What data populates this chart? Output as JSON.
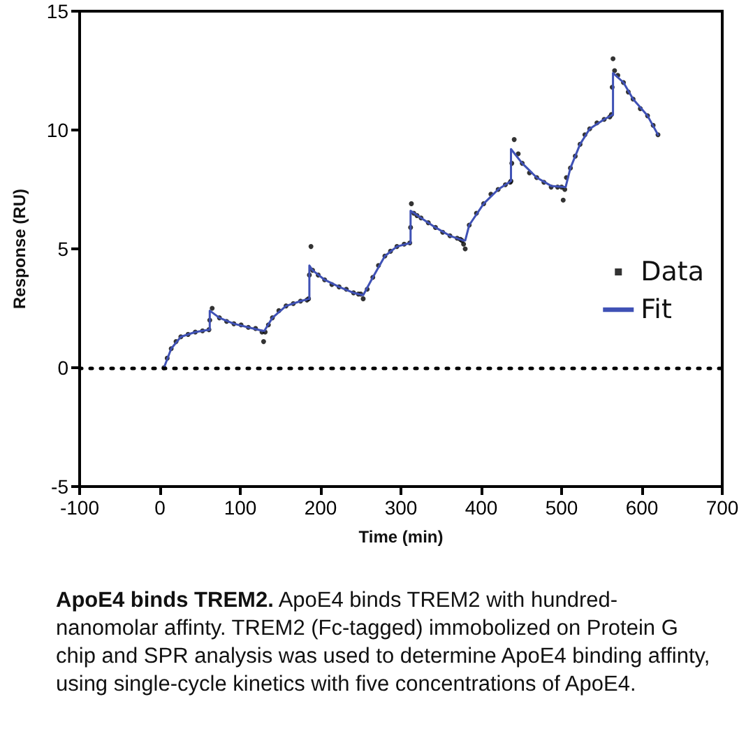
{
  "chart_data": {
    "type": "scatter",
    "title": "ApoE4 binds TREM2.",
    "annotations": [
      "ApoE4 binds TREM2 with hundred-nanomolar affinty. TREM2 (Fc-tagged) immobolized on Protein G chip and SPR analysis was used to determine ApoE4 binding affinty, using single-cycle kinetics with five concentrations of ApoE4."
    ],
    "xlabel": "Time (min)",
    "ylabel": "Response (RU)",
    "xlim": [
      -100,
      700
    ],
    "xticks": [
      -100,
      0,
      100,
      200,
      300,
      400,
      500,
      600,
      700
    ],
    "ylim": [
      -5,
      15
    ],
    "yticks": [
      -5,
      0,
      5,
      10,
      15
    ],
    "grid": false,
    "legend": "right",
    "marker": "circle",
    "ref_lines": [
      {
        "axis": "y",
        "value": 0,
        "color": "#000000",
        "line_style": "dotted"
      }
    ],
    "series": [
      {
        "name": "Data",
        "color": "#000000",
        "x": [
          5,
          9,
          14,
          20,
          26,
          35,
          44,
          53,
          61,
          62,
          65,
          74,
          83,
          92,
          101,
          110,
          119,
          127,
          129,
          131,
          135,
          140,
          148,
          157,
          166,
          175,
          183,
          185,
          186,
          188,
          190,
          197,
          205,
          214,
          223,
          232,
          241,
          247,
          250,
          253,
          258,
          265,
          272,
          280,
          287,
          295,
          304,
          311,
          312,
          313,
          316,
          320,
          325,
          334,
          343,
          352,
          361,
          370,
          374,
          376,
          378,
          380,
          385,
          394,
          403,
          412,
          421,
          430,
          436,
          437,
          438,
          441,
          446,
          451,
          460,
          469,
          478,
          487,
          495,
          500,
          502,
          504,
          506,
          511,
          517,
          523,
          529,
          535,
          544,
          553,
          560,
          562,
          563,
          564,
          566,
          570,
          577,
          583,
          589,
          598,
          607,
          614,
          620
        ],
        "values": [
          0,
          0.4,
          0.8,
          1.1,
          1.3,
          1.4,
          1.5,
          1.55,
          1.6,
          2.0,
          2.5,
          2.1,
          1.95,
          1.85,
          1.8,
          1.7,
          1.65,
          1.5,
          1.1,
          1.5,
          1.8,
          2.1,
          2.4,
          2.6,
          2.7,
          2.8,
          2.85,
          2.9,
          3.9,
          5.1,
          4.1,
          3.9,
          3.7,
          3.5,
          3.4,
          3.3,
          3.15,
          3.1,
          3.1,
          2.9,
          3.3,
          3.8,
          4.3,
          4.7,
          4.9,
          5.1,
          5.2,
          5.25,
          5.9,
          6.9,
          6.5,
          6.4,
          6.3,
          6.1,
          5.9,
          5.7,
          5.55,
          5.45,
          5.4,
          5.35,
          5.2,
          5.0,
          6.0,
          6.5,
          6.9,
          7.3,
          7.5,
          7.7,
          7.8,
          7.85,
          8.6,
          9.6,
          9.0,
          8.6,
          8.2,
          8.0,
          7.8,
          7.6,
          7.6,
          7.6,
          7.05,
          7.5,
          8.0,
          8.4,
          8.9,
          9.4,
          9.8,
          10.05,
          10.3,
          10.45,
          10.55,
          10.65,
          11.8,
          13.0,
          12.5,
          12.3,
          12.0,
          11.6,
          11.3,
          10.9,
          10.6,
          10.2,
          9.8
        ]
      },
      {
        "name": "Fit",
        "type": "line",
        "marker": "none",
        "color": "#3f51b5",
        "x": [
          5,
          14,
          26,
          44,
          62,
          62,
          74,
          92,
          110,
          128,
          130,
          140,
          157,
          175,
          186,
          186,
          190,
          205,
          223,
          241,
          253,
          265,
          280,
          295,
          312,
          312,
          325,
          343,
          361,
          378,
          380,
          385,
          403,
          421,
          437,
          437,
          451,
          469,
          487,
          503,
          505,
          511,
          523,
          535,
          553,
          564,
          564,
          577,
          589,
          607,
          620
        ],
        "values": [
          0,
          0.8,
          1.3,
          1.5,
          1.6,
          2.4,
          2.1,
          1.85,
          1.7,
          1.55,
          1.55,
          2.1,
          2.6,
          2.8,
          2.9,
          4.3,
          4.1,
          3.7,
          3.4,
          3.15,
          3.05,
          3.8,
          4.7,
          5.1,
          5.25,
          6.6,
          6.3,
          5.9,
          5.55,
          5.35,
          5.35,
          6.0,
          6.9,
          7.5,
          7.85,
          9.2,
          8.6,
          8.0,
          7.65,
          7.6,
          7.6,
          8.4,
          9.4,
          10.05,
          10.45,
          10.65,
          12.4,
          12.0,
          11.3,
          10.6,
          9.8
        ]
      }
    ]
  }
}
